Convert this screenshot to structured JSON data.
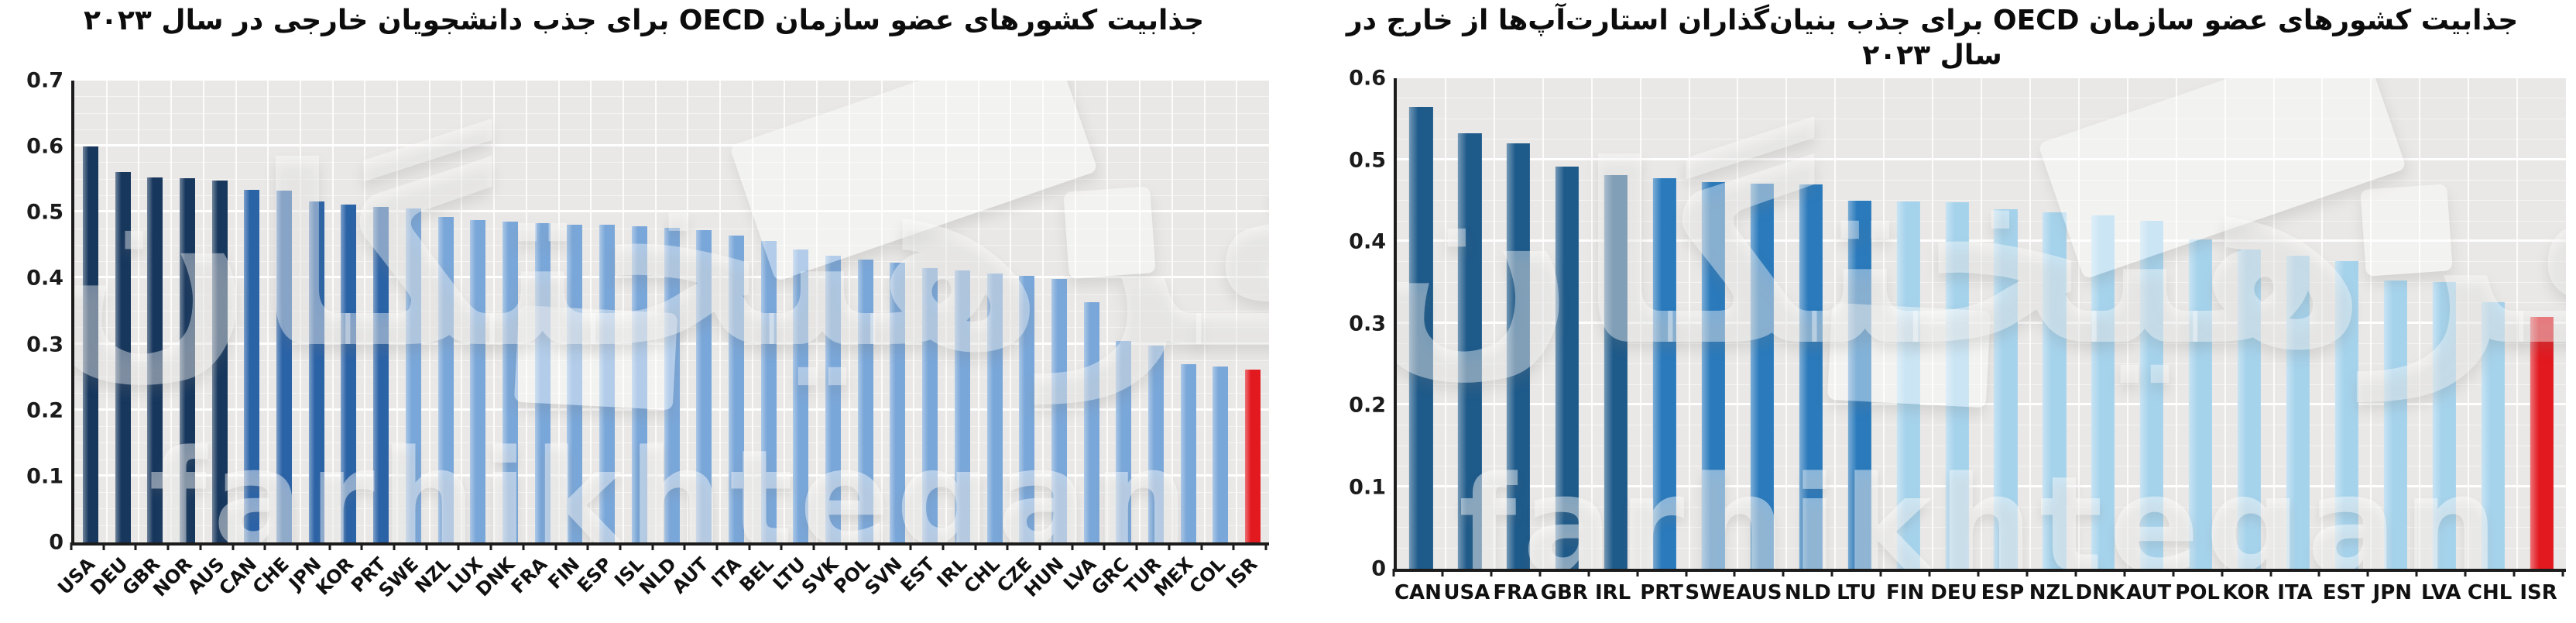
{
  "watermark": {
    "persian": "فرهیختگان",
    "latin": "farhikhtegan"
  },
  "chart_data": [
    {
      "type": "bar",
      "title": "جذابیت کشورهای عضو سازمان OECD برای جذب دانشجویان خارجی در سال ۲۰۲۳",
      "ylabel": "",
      "xlabel": "",
      "ylim": [
        0,
        0.7
      ],
      "y_ticks": [
        "0",
        "0.1",
        "0.2",
        "0.3",
        "0.4",
        "0.5",
        "0.6",
        "0.7"
      ],
      "grid": true,
      "grid_major_step": 0.1,
      "grid_minor_step": 0.025,
      "legend": false,
      "x_label_rotation": -45,
      "categories": [
        "USA",
        "DEU",
        "GBR",
        "NOR",
        "AUS",
        "CAN",
        "CHE",
        "JPN",
        "KOR",
        "PRT",
        "SWE",
        "NZL",
        "LUX",
        "DNK",
        "FRA",
        "FIN",
        "ESP",
        "ISL",
        "NLD",
        "AUT",
        "ITA",
        "BEL",
        "LTU",
        "SVK",
        "POL",
        "SVN",
        "EST",
        "IRL",
        "CHL",
        "CZE",
        "HUN",
        "LVA",
        "GRC",
        "TUR",
        "MEX",
        "COL",
        "ISR"
      ],
      "values": [
        0.6,
        0.561,
        0.553,
        0.552,
        0.549,
        0.534,
        0.533,
        0.517,
        0.512,
        0.508,
        0.506,
        0.493,
        0.489,
        0.486,
        0.484,
        0.482,
        0.481,
        0.479,
        0.477,
        0.473,
        0.465,
        0.457,
        0.444,
        0.434,
        0.429,
        0.424,
        0.416,
        0.412,
        0.408,
        0.404,
        0.399,
        0.364,
        0.305,
        0.298,
        0.27,
        0.267,
        0.262
      ],
      "color_keys": [
        "navy",
        "navy",
        "navy",
        "navy",
        "navy",
        "royal",
        "royal",
        "royal",
        "royal",
        "royal",
        "light",
        "light",
        "light",
        "light",
        "light",
        "light",
        "light",
        "light",
        "light",
        "light",
        "light",
        "light",
        "light",
        "light",
        "light",
        "light",
        "light",
        "light",
        "light",
        "light",
        "light",
        "light",
        "light",
        "light",
        "light",
        "light",
        "red"
      ],
      "palette": {
        "navy": "#17375d",
        "royal": "#2b63a7",
        "light": "#7aa7d9",
        "red": "#e2191f"
      },
      "plot_background": "#e9e8e6",
      "bar_width_fraction": 0.48
    },
    {
      "type": "bar",
      "title": "جذابیت کشورهای عضو سازمان OECD برای جذب بنیان‌گذاران استارت‌آپ‌ها از خارج در سال ۲۰۲۳",
      "ylabel": "",
      "xlabel": "",
      "ylim": [
        0,
        0.6
      ],
      "y_ticks": [
        "0",
        "0.1",
        "0.2",
        "0.3",
        "0.4",
        "0.5",
        "0.6"
      ],
      "grid": true,
      "grid_major_step": 0.1,
      "grid_minor_step": 0.025,
      "legend": false,
      "x_label_rotation": 0,
      "categories": [
        "CAN",
        "USA",
        "FRA",
        "GBR",
        "IRL",
        "PRT",
        "SWE",
        "AUS",
        "NLD",
        "LTU",
        "FIN",
        "DEU",
        "ESP",
        "NZL",
        "DNK",
        "AUT",
        "POL",
        "KOR",
        "ITA",
        "EST",
        "JPN",
        "LVA",
        "CHL",
        "ISR"
      ],
      "values": [
        0.565,
        0.533,
        0.52,
        0.492,
        0.482,
        0.478,
        0.473,
        0.471,
        0.47,
        0.45,
        0.449,
        0.448,
        0.44,
        0.436,
        0.432,
        0.426,
        0.403,
        0.391,
        0.383,
        0.376,
        0.353,
        0.351,
        0.326,
        0.308
      ],
      "color_keys": [
        "navy",
        "navy",
        "navy",
        "navy",
        "navy",
        "royal",
        "royal",
        "royal",
        "royal",
        "royal",
        "light",
        "light",
        "light",
        "light",
        "light",
        "light",
        "light",
        "light",
        "light",
        "light",
        "light",
        "light",
        "light",
        "red"
      ],
      "palette": {
        "navy": "#1e5a8a",
        "royal": "#2a7abc",
        "light": "#a6d3ec",
        "red": "#e2191f"
      },
      "plot_background": "#e9e8e6",
      "bar_width_fraction": 0.48
    }
  ]
}
